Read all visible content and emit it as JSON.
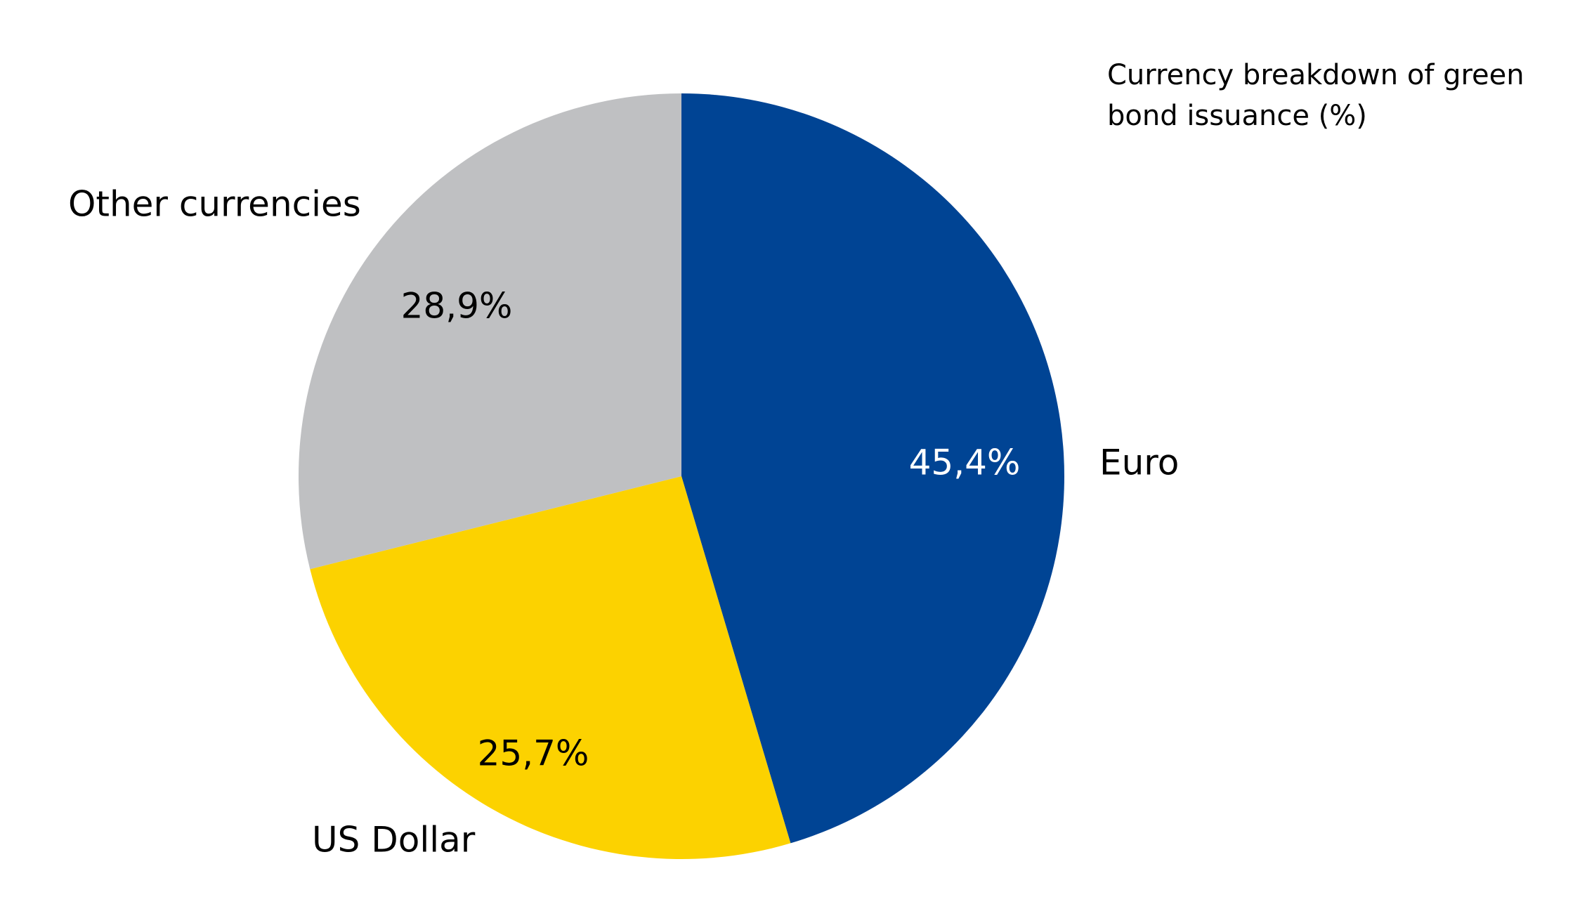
{
  "chart_data": {
    "type": "pie",
    "title": "Currency breakdown of green bond issuance (%)",
    "categories": [
      "Euro",
      "US Dollar",
      "Other currencies"
    ],
    "values": [
      45.4,
      25.7,
      28.9
    ],
    "value_labels": [
      "45,4%",
      "25,7%",
      "28,9%"
    ],
    "colors": [
      "#004494",
      "#fcd200",
      "#bfc0c2"
    ]
  }
}
